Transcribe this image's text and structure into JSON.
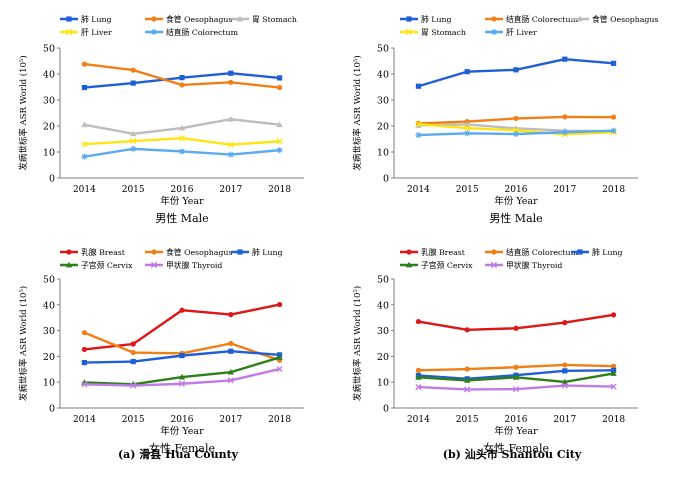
{
  "captions": {
    "a": "(a)  滑县 Hua County",
    "b": "(b)  汕头市 Shantou City"
  },
  "chart_data": [
    {
      "type": "line",
      "panel": "hua-male",
      "subtitle": "男性 Male",
      "xlabel": "年份 Year",
      "ylabel": "发病世标率 ASR World (10⁵)",
      "ylim": [
        0,
        50
      ],
      "yticks": [
        0,
        10,
        20,
        30,
        40,
        50
      ],
      "x": [
        "2014",
        "2015",
        "2016",
        "2017",
        "2018"
      ],
      "legend_position": "top",
      "series": [
        {
          "name": "肺 Lung",
          "color": "#1f5fd6",
          "marker": "square",
          "values": [
            34.8,
            36.5,
            38.6,
            40.3,
            38.5
          ]
        },
        {
          "name": "食管 Oesophagus",
          "color": "#f07f16",
          "marker": "circle",
          "values": [
            43.8,
            41.5,
            35.8,
            36.8,
            34.8
          ]
        },
        {
          "name": "胃 Stomach",
          "color": "#bdbdbd",
          "marker": "triangle",
          "values": [
            20.5,
            17.0,
            19.2,
            22.6,
            20.5
          ]
        },
        {
          "name": "肝 Liver",
          "color": "#ffe413",
          "marker": "x",
          "values": [
            13.0,
            14.2,
            15.3,
            12.8,
            14.1
          ]
        },
        {
          "name": "结直肠 Colorectum",
          "color": "#5aaaf0",
          "marker": "star",
          "values": [
            8.2,
            11.2,
            10.2,
            9.0,
            10.7
          ]
        }
      ]
    },
    {
      "type": "line",
      "panel": "shantou-male",
      "subtitle": "男性 Male",
      "xlabel": "年份 Year",
      "ylabel": "发病世标率 ASR World (10⁵)",
      "ylim": [
        0,
        50
      ],
      "yticks": [
        0,
        10,
        20,
        30,
        40,
        50
      ],
      "x": [
        "2014",
        "2015",
        "2016",
        "2017",
        "2018"
      ],
      "legend_position": "top",
      "series": [
        {
          "name": "肺 Lung",
          "color": "#1f5fd6",
          "marker": "square",
          "values": [
            35.3,
            40.9,
            41.6,
            45.7,
            44.1
          ]
        },
        {
          "name": "结直肠 Colorectum",
          "color": "#f07f16",
          "marker": "circle",
          "values": [
            21.0,
            21.7,
            22.9,
            23.5,
            23.4
          ]
        },
        {
          "name": "食管 Oesophagus",
          "color": "#bdbdbd",
          "marker": "triangle",
          "values": [
            20.2,
            20.6,
            19.1,
            18.2,
            18.0
          ]
        },
        {
          "name": "胃 Stomach",
          "color": "#ffe413",
          "marker": "x",
          "values": [
            20.7,
            19.2,
            18.3,
            16.8,
            17.6
          ]
        },
        {
          "name": "肝 Liver",
          "color": "#5aaaf0",
          "marker": "star",
          "values": [
            16.5,
            17.2,
            16.9,
            17.6,
            18.2
          ]
        }
      ]
    },
    {
      "type": "line",
      "panel": "hua-female",
      "subtitle": "女性 Female",
      "xlabel": "年份 Year",
      "ylabel": "发病世标率 ASR World (10⁵)",
      "ylim": [
        0,
        50
      ],
      "yticks": [
        0,
        10,
        20,
        30,
        40,
        50
      ],
      "x": [
        "2014",
        "2015",
        "2016",
        "2017",
        "2018"
      ],
      "legend_position": "top",
      "series": [
        {
          "name": "乳腺 Breast",
          "color": "#dd1616",
          "marker": "circle",
          "values": [
            22.7,
            24.8,
            37.9,
            36.2,
            40.1
          ]
        },
        {
          "name": "食管 Oesophagus",
          "color": "#f07f16",
          "marker": "circle",
          "values": [
            29.2,
            21.5,
            21.2,
            25.0,
            18.5
          ]
        },
        {
          "name": "肺 Lung",
          "color": "#1f5fd6",
          "marker": "square",
          "values": [
            17.6,
            18.0,
            20.3,
            22.0,
            20.6
          ]
        },
        {
          "name": "子宫颈 Cervix",
          "color": "#2e7f1c",
          "marker": "triangle",
          "values": [
            9.9,
            9.2,
            12.0,
            13.9,
            19.6
          ]
        },
        {
          "name": "甲状腺 Thyroid",
          "color": "#bf7be6",
          "marker": "x",
          "values": [
            9.2,
            8.7,
            9.4,
            10.7,
            15.1
          ]
        }
      ]
    },
    {
      "type": "line",
      "panel": "shantou-female",
      "subtitle": "女性 Female",
      "xlabel": "年份 Year",
      "ylabel": "发病世标率 ASR World (10⁵)",
      "ylim": [
        0,
        50
      ],
      "yticks": [
        0,
        10,
        20,
        30,
        40,
        50
      ],
      "x": [
        "2014",
        "2015",
        "2016",
        "2017",
        "2018"
      ],
      "legend_position": "top",
      "series": [
        {
          "name": "乳腺 Breast",
          "color": "#dd1616",
          "marker": "circle",
          "values": [
            33.5,
            30.3,
            30.9,
            33.1,
            36.1
          ]
        },
        {
          "name": "结直肠 Colorectum",
          "color": "#f07f16",
          "marker": "circle",
          "values": [
            14.6,
            15.1,
            15.8,
            16.7,
            16.2
          ]
        },
        {
          "name": "肺 Lung",
          "color": "#1f5fd6",
          "marker": "square",
          "values": [
            12.6,
            11.3,
            12.7,
            14.4,
            14.6
          ]
        },
        {
          "name": "子宫颈 Cervix",
          "color": "#2e7f1c",
          "marker": "triangle",
          "values": [
            11.9,
            10.7,
            11.9,
            10.1,
            13.4
          ]
        },
        {
          "name": "甲状腺 Thyroid",
          "color": "#bf7be6",
          "marker": "x",
          "values": [
            8.1,
            7.2,
            7.3,
            8.7,
            8.3
          ]
        }
      ]
    }
  ]
}
